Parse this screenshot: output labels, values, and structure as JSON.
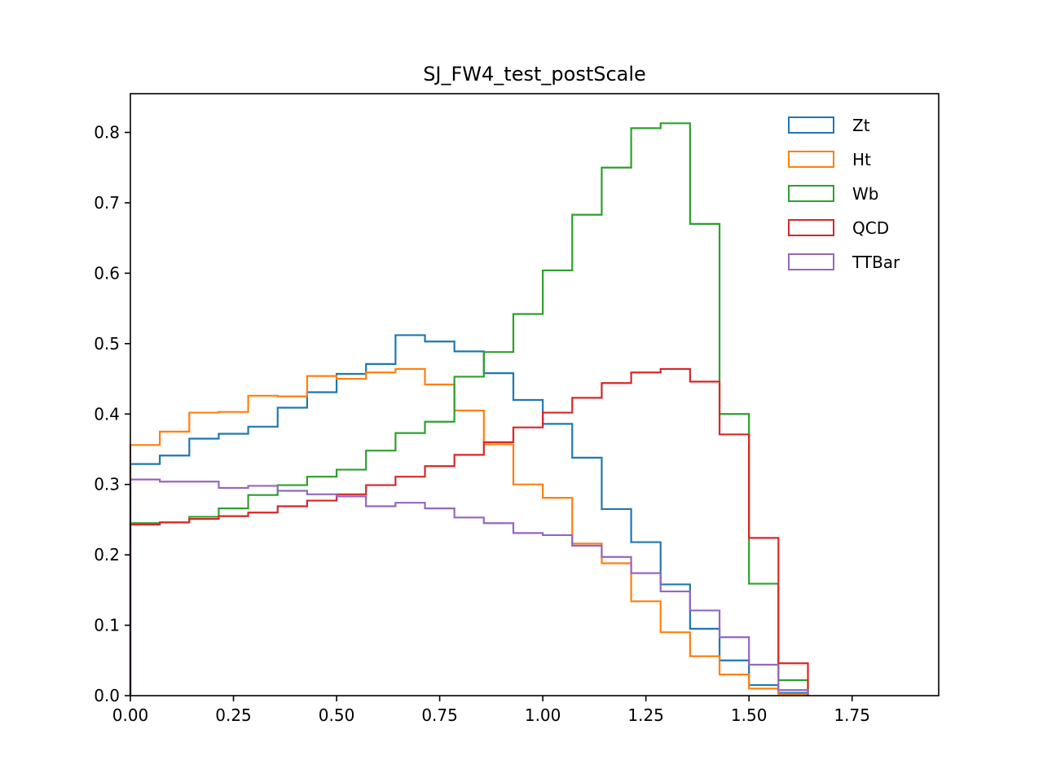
{
  "chart_data": {
    "type": "step-histogram",
    "title": "SJ_FW4_test_postScale",
    "xlabel": "",
    "ylabel": "",
    "xlim": [
      0.0,
      1.96
    ],
    "ylim": [
      0.0,
      0.855
    ],
    "xticks": [
      0.0,
      0.25,
      0.5,
      0.75,
      1.0,
      1.25,
      1.5,
      1.75
    ],
    "xtick_labels": [
      "0.00",
      "0.25",
      "0.50",
      "0.75",
      "1.00",
      "1.25",
      "1.50",
      "1.75"
    ],
    "yticks": [
      0.0,
      0.1,
      0.2,
      0.3,
      0.4,
      0.5,
      0.6,
      0.7,
      0.8
    ],
    "ytick_labels": [
      "0.0",
      "0.1",
      "0.2",
      "0.3",
      "0.4",
      "0.5",
      "0.6",
      "0.7",
      "0.8"
    ],
    "bin_edges": [
      0.0,
      0.0714,
      0.1429,
      0.2143,
      0.2857,
      0.3571,
      0.4286,
      0.5,
      0.5714,
      0.6429,
      0.7143,
      0.7857,
      0.8571,
      0.9286,
      1.0,
      1.0714,
      1.1429,
      1.2143,
      1.2857,
      1.3571,
      1.4286,
      1.5,
      1.5714,
      1.6429
    ],
    "legend_position": "upper right",
    "series": [
      {
        "name": "Zt",
        "color": "#1f77b4",
        "values": [
          0.329,
          0.341,
          0.365,
          0.372,
          0.382,
          0.409,
          0.431,
          0.457,
          0.471,
          0.512,
          0.503,
          0.489,
          0.458,
          0.42,
          0.386,
          0.338,
          0.265,
          0.218,
          0.158,
          0.095,
          0.05,
          0.015,
          0.004
        ]
      },
      {
        "name": "Ht",
        "color": "#ff7f0e",
        "values": [
          0.356,
          0.375,
          0.402,
          0.403,
          0.426,
          0.425,
          0.454,
          0.45,
          0.459,
          0.464,
          0.442,
          0.405,
          0.357,
          0.3,
          0.281,
          0.216,
          0.188,
          0.134,
          0.09,
          0.056,
          0.03,
          0.01,
          0.002
        ]
      },
      {
        "name": "Wb",
        "color": "#2ca02c",
        "values": [
          0.245,
          0.246,
          0.254,
          0.266,
          0.285,
          0.299,
          0.311,
          0.321,
          0.348,
          0.373,
          0.389,
          0.453,
          0.488,
          0.542,
          0.604,
          0.683,
          0.75,
          0.806,
          0.813,
          0.67,
          0.4,
          0.159,
          0.022
        ]
      },
      {
        "name": "QCD",
        "color": "#d62728",
        "values": [
          0.243,
          0.246,
          0.251,
          0.255,
          0.26,
          0.269,
          0.277,
          0.286,
          0.299,
          0.311,
          0.326,
          0.342,
          0.36,
          0.381,
          0.402,
          0.423,
          0.444,
          0.459,
          0.464,
          0.446,
          0.371,
          0.224,
          0.046
        ]
      },
      {
        "name": "TTBar",
        "color": "#9467bd",
        "values": [
          0.307,
          0.304,
          0.304,
          0.295,
          0.298,
          0.291,
          0.286,
          0.283,
          0.269,
          0.274,
          0.266,
          0.253,
          0.245,
          0.231,
          0.228,
          0.213,
          0.197,
          0.174,
          0.148,
          0.121,
          0.083,
          0.044,
          0.008
        ]
      }
    ]
  }
}
